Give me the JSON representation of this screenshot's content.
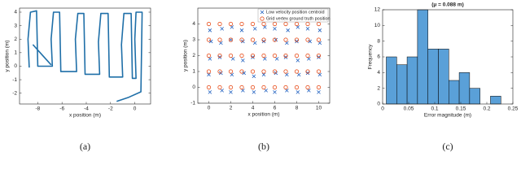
{
  "chart_data": [
    {
      "type": "line",
      "caption": "(a)",
      "xlabel": "x position (m)",
      "ylabel": "y position (m)",
      "color": "#1f6fa8",
      "x": [
        -8.7,
        -8.8,
        -8.6,
        -8.1,
        -8.0,
        -6.8,
        -6.9,
        -6.7,
        -6.2,
        -6.1,
        -4.8,
        -4.9,
        -4.7,
        -4.2,
        -4.1,
        -2.9,
        -3.0,
        -2.8,
        -2.2,
        -2.1,
        -1.0,
        -1.1,
        -0.9,
        -0.3,
        -0.2,
        0.1,
        0.0,
        0.1,
        0.6,
        0.5,
        -0.5,
        -1.5,
        null,
        -8.4,
        -7.6,
        -6.9
      ],
      "values": [
        -0.1,
        2.0,
        4.0,
        4.1,
        0.0,
        0.0,
        2.0,
        4.0,
        4.0,
        -0.4,
        -0.4,
        2.0,
        3.9,
        3.9,
        -0.6,
        -0.6,
        1.8,
        3.9,
        3.9,
        -0.8,
        -0.8,
        1.6,
        3.9,
        3.9,
        -0.9,
        -0.9,
        2.0,
        4.0,
        4.0,
        -1.9,
        -2.3,
        -2.6,
        null,
        1.6,
        0.8,
        0.1
      ],
      "xlim": [
        -9.5,
        1.3
      ],
      "xticks": [
        -8,
        -6,
        -4,
        -2,
        0
      ],
      "ylim": [
        -2.8,
        4.3
      ],
      "yticks": [
        -2,
        -1,
        0,
        1,
        2,
        3,
        4
      ]
    },
    {
      "type": "scatter",
      "caption": "(b)",
      "xlabel": "x position (m)",
      "ylabel": "y position (m)",
      "xlim": [
        -1,
        11
      ],
      "xticks": [
        0,
        2,
        4,
        6,
        8,
        10
      ],
      "ylim": [
        -1,
        5
      ],
      "yticks": [
        -1,
        0,
        1,
        2,
        3,
        4
      ],
      "series": [
        {
          "name": "Low velocity position centroid",
          "color": "#1f5fbf",
          "marker": "x",
          "x": [
            0.1,
            1.2,
            2.1,
            3.0,
            4.2,
            5.1,
            6.0,
            7.2,
            8.1,
            9.0,
            10.1,
            0.2,
            1.1,
            2.0,
            3.1,
            4.2,
            5.0,
            6.1,
            7.1,
            8.0,
            9.2,
            10.1,
            0.1,
            1.0,
            2.2,
            3.1,
            4.0,
            5.1,
            6.2,
            7.0,
            8.1,
            9.1,
            10.0,
            0.0,
            1.1,
            2.1,
            3.2,
            4.1,
            5.0,
            6.1,
            7.1,
            8.2,
            9.0,
            10.1,
            0.1,
            1.2,
            2.0,
            3.1,
            4.1,
            5.2,
            6.0,
            7.1,
            8.1,
            9.1,
            10.0
          ],
          "values": [
            3.6,
            3.7,
            3.8,
            3.6,
            3.7,
            3.8,
            3.7,
            3.6,
            3.8,
            3.7,
            3.6,
            2.9,
            2.8,
            3.0,
            2.9,
            2.8,
            2.9,
            3.0,
            2.8,
            2.9,
            2.9,
            2.8,
            1.8,
            1.9,
            1.8,
            1.7,
            1.9,
            1.8,
            1.8,
            1.9,
            1.7,
            1.8,
            1.9,
            0.8,
            0.9,
            0.8,
            0.9,
            0.7,
            0.8,
            0.9,
            0.8,
            0.8,
            0.9,
            0.8,
            -0.3,
            -0.2,
            -0.3,
            -0.2,
            -0.3,
            -0.2,
            -0.3,
            -0.2,
            -0.3,
            -0.2,
            -0.3
          ]
        },
        {
          "name": "Grid vertex ground truth position",
          "color": "#e8501e",
          "marker": "o",
          "x": [
            0,
            1,
            2,
            3,
            4,
            5,
            6,
            7,
            8,
            9,
            10,
            0,
            1,
            2,
            3,
            4,
            5,
            6,
            7,
            8,
            9,
            10,
            0,
            1,
            2,
            3,
            4,
            5,
            6,
            7,
            8,
            9,
            10,
            0,
            1,
            2,
            3,
            4,
            5,
            6,
            7,
            8,
            9,
            10,
            0,
            1,
            2,
            3,
            4,
            5,
            6,
            7,
            8,
            9,
            10
          ],
          "values": [
            4,
            4,
            4,
            4,
            4,
            4,
            4,
            4,
            4,
            4,
            4,
            3,
            3,
            3,
            3,
            3,
            3,
            3,
            3,
            3,
            3,
            3,
            2,
            2,
            2,
            2,
            2,
            2,
            2,
            2,
            2,
            2,
            2,
            1,
            1,
            1,
            1,
            1,
            1,
            1,
            1,
            1,
            1,
            1,
            0,
            0,
            0,
            0,
            0,
            0,
            0,
            0,
            0,
            0,
            0
          ]
        }
      ]
    },
    {
      "type": "histogram",
      "caption": "(c)",
      "title": "(μ = 0.088 m)",
      "xlabel": "Error magnitude (m)",
      "ylabel": "Frequency",
      "color": "#5aa0d8",
      "bins": [
        0.007,
        0.027,
        0.047,
        0.067,
        0.087,
        0.107,
        0.127,
        0.147,
        0.167,
        0.187,
        0.207,
        0.227
      ],
      "values": [
        6,
        5,
        6,
        12,
        7,
        7,
        3,
        4,
        2,
        0,
        1
      ],
      "xlim": [
        0,
        0.25
      ],
      "xticks": [
        0,
        0.05,
        0.1,
        0.15,
        0.2,
        0.25
      ],
      "ylim": [
        0,
        12
      ],
      "yticks": [
        0,
        2,
        4,
        6,
        8,
        10,
        12
      ]
    }
  ]
}
